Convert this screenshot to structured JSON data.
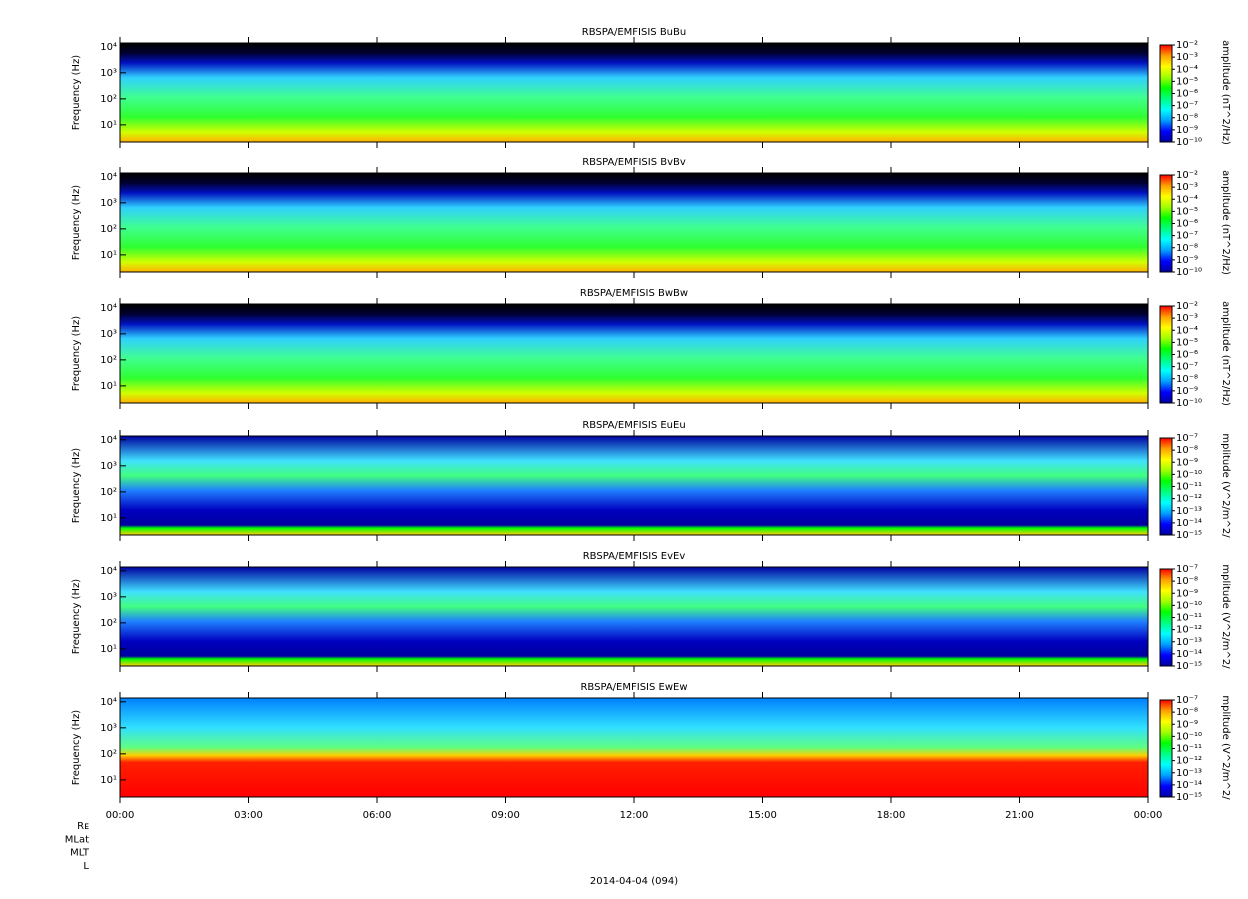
{
  "chart_data": [
    {
      "type": "spectrogram",
      "title": "RBSPA/EMFISIS  BuBu",
      "ylabel": "Frequency (Hz)",
      "ylim": [
        2.2,
        14000
      ],
      "log_y": true,
      "yticks": [
        {
          "value": 10,
          "label": "10¹"
        },
        {
          "value": 100,
          "label": "10²"
        },
        {
          "value": 1000,
          "label": "10³"
        },
        {
          "value": 10000,
          "label": "10⁴"
        }
      ],
      "colorbar_label": "amplitude (nT^2/Hz)",
      "clim": [
        1e-10,
        0.01
      ],
      "cticks": [
        {
          "value": 0.01,
          "label": "10⁻²"
        },
        {
          "value": 0.001,
          "label": "10⁻³"
        },
        {
          "value": 0.0001,
          "label": "10⁻⁴"
        },
        {
          "value": 1e-05,
          "label": "10⁻⁵"
        },
        {
          "value": 1e-06,
          "label": "10⁻⁶"
        },
        {
          "value": 1e-07,
          "label": "10⁻⁷"
        },
        {
          "value": 1e-08,
          "label": "10⁻⁸"
        },
        {
          "value": 1e-09,
          "label": "10⁻⁹"
        },
        {
          "value": 1e-10,
          "label": "10⁻¹⁰"
        }
      ]
    },
    {
      "type": "spectrogram",
      "title": "RBSPA/EMFISIS  BvBv",
      "ylabel": "Frequency (Hz)",
      "ylim": [
        2.2,
        14000
      ],
      "log_y": true,
      "yticks": [
        {
          "value": 10,
          "label": "10¹"
        },
        {
          "value": 100,
          "label": "10²"
        },
        {
          "value": 1000,
          "label": "10³"
        },
        {
          "value": 10000,
          "label": "10⁴"
        }
      ],
      "colorbar_label": "amplitude (nT^2/Hz)",
      "clim": [
        1e-10,
        0.01
      ],
      "cticks": [
        {
          "value": 0.01,
          "label": "10⁻²"
        },
        {
          "value": 0.001,
          "label": "10⁻³"
        },
        {
          "value": 0.0001,
          "label": "10⁻⁴"
        },
        {
          "value": 1e-05,
          "label": "10⁻⁵"
        },
        {
          "value": 1e-06,
          "label": "10⁻⁶"
        },
        {
          "value": 1e-07,
          "label": "10⁻⁷"
        },
        {
          "value": 1e-08,
          "label": "10⁻⁸"
        },
        {
          "value": 1e-09,
          "label": "10⁻⁹"
        },
        {
          "value": 1e-10,
          "label": "10⁻¹⁰"
        }
      ]
    },
    {
      "type": "spectrogram",
      "title": "RBSPA/EMFISIS  BwBw",
      "ylabel": "Frequency (Hz)",
      "ylim": [
        2.2,
        14000
      ],
      "log_y": true,
      "yticks": [
        {
          "value": 10,
          "label": "10¹"
        },
        {
          "value": 100,
          "label": "10²"
        },
        {
          "value": 1000,
          "label": "10³"
        },
        {
          "value": 10000,
          "label": "10⁴"
        }
      ],
      "colorbar_label": "amplitude (nT^2/Hz)",
      "clim": [
        1e-10,
        0.01
      ],
      "cticks": [
        {
          "value": 0.01,
          "label": "10⁻²"
        },
        {
          "value": 0.001,
          "label": "10⁻³"
        },
        {
          "value": 0.0001,
          "label": "10⁻⁴"
        },
        {
          "value": 1e-05,
          "label": "10⁻⁵"
        },
        {
          "value": 1e-06,
          "label": "10⁻⁶"
        },
        {
          "value": 1e-07,
          "label": "10⁻⁷"
        },
        {
          "value": 1e-08,
          "label": "10⁻⁸"
        },
        {
          "value": 1e-09,
          "label": "10⁻⁹"
        },
        {
          "value": 1e-10,
          "label": "10⁻¹⁰"
        }
      ]
    },
    {
      "type": "spectrogram",
      "title": "RBSPA/EMFISIS  EuEu",
      "ylabel": "Frequency (Hz)",
      "ylim": [
        2.2,
        14000
      ],
      "log_y": true,
      "yticks": [
        {
          "value": 10,
          "label": "10¹"
        },
        {
          "value": 100,
          "label": "10²"
        },
        {
          "value": 1000,
          "label": "10³"
        },
        {
          "value": 10000,
          "label": "10⁴"
        }
      ],
      "colorbar_label": "mplitude (V^2/m^2/",
      "clim": [
        1e-15,
        1e-07
      ],
      "cticks": [
        {
          "value": 1e-07,
          "label": "10⁻⁷"
        },
        {
          "value": 1e-08,
          "label": "10⁻⁸"
        },
        {
          "value": 1e-09,
          "label": "10⁻⁹"
        },
        {
          "value": 1e-10,
          "label": "10⁻¹⁰"
        },
        {
          "value": 1e-11,
          "label": "10⁻¹¹"
        },
        {
          "value": 1e-12,
          "label": "10⁻¹²"
        },
        {
          "value": 1e-13,
          "label": "10⁻¹³"
        },
        {
          "value": 1e-14,
          "label": "10⁻¹⁴"
        },
        {
          "value": 1e-15,
          "label": "10⁻¹⁵"
        }
      ]
    },
    {
      "type": "spectrogram",
      "title": "RBSPA/EMFISIS  EvEv",
      "ylabel": "Frequency (Hz)",
      "ylim": [
        2.2,
        14000
      ],
      "log_y": true,
      "yticks": [
        {
          "value": 10,
          "label": "10¹"
        },
        {
          "value": 100,
          "label": "10²"
        },
        {
          "value": 1000,
          "label": "10³"
        },
        {
          "value": 10000,
          "label": "10⁴"
        }
      ],
      "colorbar_label": "mplitude (V^2/m^2/",
      "clim": [
        1e-15,
        1e-07
      ],
      "cticks": [
        {
          "value": 1e-07,
          "label": "10⁻⁷"
        },
        {
          "value": 1e-08,
          "label": "10⁻⁸"
        },
        {
          "value": 1e-09,
          "label": "10⁻⁹"
        },
        {
          "value": 1e-10,
          "label": "10⁻¹⁰"
        },
        {
          "value": 1e-11,
          "label": "10⁻¹¹"
        },
        {
          "value": 1e-12,
          "label": "10⁻¹²"
        },
        {
          "value": 1e-13,
          "label": "10⁻¹³"
        },
        {
          "value": 1e-14,
          "label": "10⁻¹⁴"
        },
        {
          "value": 1e-15,
          "label": "10⁻¹⁵"
        }
      ]
    },
    {
      "type": "spectrogram",
      "title": "RBSPA/EMFISIS  EwEw",
      "ylabel": "Frequency (Hz)",
      "ylim": [
        2.2,
        14000
      ],
      "log_y": true,
      "yticks": [
        {
          "value": 10,
          "label": "10¹"
        },
        {
          "value": 100,
          "label": "10²"
        },
        {
          "value": 1000,
          "label": "10³"
        },
        {
          "value": 10000,
          "label": "10⁴"
        }
      ],
      "colorbar_label": "mplitude (V^2/m^2/",
      "clim": [
        1e-15,
        1e-07
      ],
      "cticks": [
        {
          "value": 1e-07,
          "label": "10⁻⁷"
        },
        {
          "value": 1e-08,
          "label": "10⁻⁸"
        },
        {
          "value": 1e-09,
          "label": "10⁻⁹"
        },
        {
          "value": 1e-10,
          "label": "10⁻¹⁰"
        },
        {
          "value": 1e-11,
          "label": "10⁻¹¹"
        },
        {
          "value": 1e-12,
          "label": "10⁻¹²"
        },
        {
          "value": 1e-13,
          "label": "10⁻¹³"
        },
        {
          "value": 1e-14,
          "label": "10⁻¹⁴"
        },
        {
          "value": 1e-15,
          "label": "10⁻¹⁵"
        }
      ]
    }
  ],
  "x_axis": {
    "xlim": [
      0,
      24
    ],
    "xticks": [
      {
        "value": 0,
        "label": "00:00"
      },
      {
        "value": 3,
        "label": "03:00"
      },
      {
        "value": 6,
        "label": "06:00"
      },
      {
        "value": 9,
        "label": "09:00"
      },
      {
        "value": 12,
        "label": "12:00"
      },
      {
        "value": 15,
        "label": "15:00"
      },
      {
        "value": 18,
        "label": "18:00"
      },
      {
        "value": 21,
        "label": "21:00"
      },
      {
        "value": 24,
        "label": "00:00"
      }
    ],
    "xlabel": "2014-04-04 (094)",
    "ephemeris_labels": [
      "Rᴇ",
      "MLat",
      "MLT",
      "L"
    ]
  },
  "colormap": [
    "#0000a0",
    "#0000ff",
    "#00a0ff",
    "#00ffff",
    "#00ff80",
    "#00ff00",
    "#a0ff00",
    "#ffff00",
    "#ffa000",
    "#ff0000"
  ]
}
